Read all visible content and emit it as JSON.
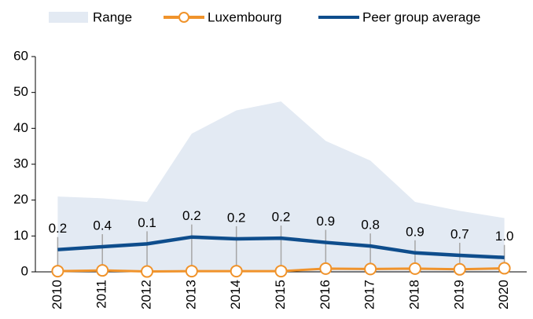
{
  "chart_data": {
    "type": "line",
    "categories": [
      "2010",
      "2011",
      "2012",
      "2013",
      "2014",
      "2015",
      "2016",
      "2017",
      "2018",
      "2019",
      "2020"
    ],
    "series": [
      {
        "name": "Range",
        "color": "#e3eaf3",
        "kind": "area",
        "values": [
          21,
          20.5,
          19.5,
          38.5,
          45,
          47.5,
          36.5,
          31,
          19.5,
          17,
          15
        ]
      },
      {
        "name": "Luxembourg",
        "color": "#f0932b",
        "kind": "line",
        "values": [
          0.2,
          0.4,
          0.1,
          0.2,
          0.2,
          0.2,
          0.9,
          0.8,
          0.9,
          0.7,
          1.0
        ],
        "value_labels": [
          "0.2",
          "0.4",
          "0.1",
          "0.2",
          "0.2",
          "0.2",
          "0.9",
          "0.8",
          "0.9",
          "0.7",
          "1.0"
        ]
      },
      {
        "name": "Peer group average",
        "color": "#0e4d8c",
        "kind": "line",
        "values": [
          6.2,
          7,
          7.8,
          9.7,
          9.2,
          9.4,
          8.2,
          7.2,
          5.3,
          4.6,
          4.0
        ]
      }
    ],
    "ylim": [
      0,
      60
    ],
    "yticks": [
      0,
      10,
      20,
      30,
      40,
      50,
      60
    ]
  }
}
